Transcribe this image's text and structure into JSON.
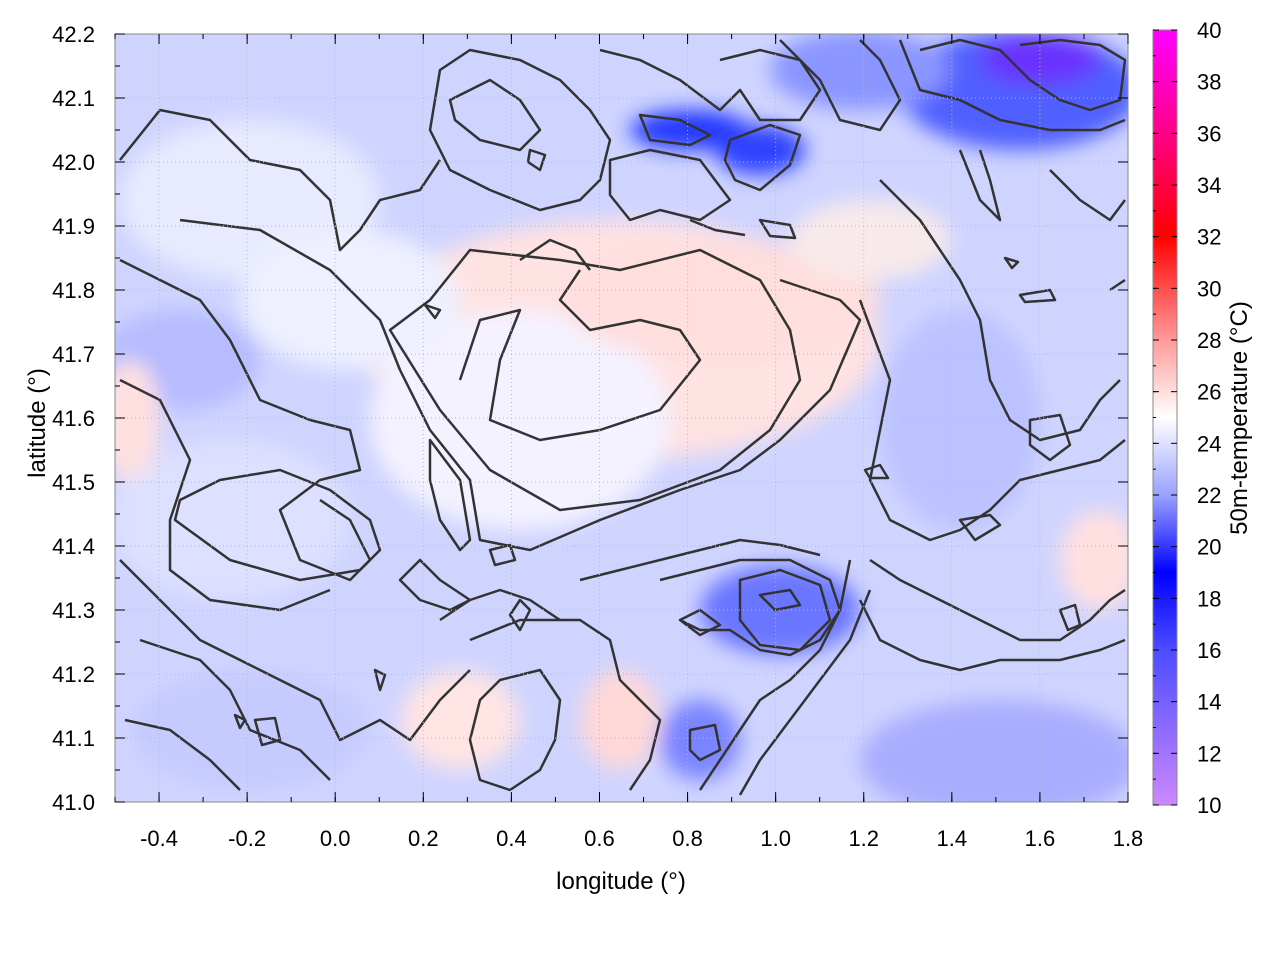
{
  "chart_data": {
    "type": "heatmap",
    "xlabel": "longitude (°)",
    "ylabel": "latitude (°)",
    "colorbar_label": "50m-temperature (°C)",
    "xlim": [
      -0.5,
      1.8
    ],
    "ylim": [
      41.0,
      42.2
    ],
    "x_ticks": [
      "-0.4",
      "-0.2",
      "0.0",
      "0.2",
      "0.4",
      "0.6",
      "0.8",
      "1.0",
      "1.2",
      "1.4",
      "1.6",
      "1.8"
    ],
    "y_ticks": [
      "41.0",
      "41.1",
      "41.2",
      "41.3",
      "41.4",
      "41.5",
      "41.6",
      "41.7",
      "41.8",
      "41.9",
      "42.0",
      "42.1",
      "42.2"
    ],
    "colorbar_range": [
      10,
      40
    ],
    "colorbar_ticks": [
      "10",
      "12",
      "14",
      "16",
      "18",
      "20",
      "22",
      "24",
      "26",
      "28",
      "30",
      "32",
      "34",
      "36",
      "38",
      "40"
    ],
    "colorbar_stops": [
      {
        "value": 10,
        "color": "#cc88ff"
      },
      {
        "value": 16,
        "color": "#4c4cff"
      },
      {
        "value": 19,
        "color": "#0000ff"
      },
      {
        "value": 22,
        "color": "#9aa2ff"
      },
      {
        "value": 25,
        "color": "#ffffff"
      },
      {
        "value": 28,
        "color": "#ff9a9a"
      },
      {
        "value": 32,
        "color": "#ff0000"
      },
      {
        "value": 36,
        "color": "#ff0088"
      },
      {
        "value": 40,
        "color": "#ff00ff"
      }
    ],
    "grid": true,
    "contours": true
  }
}
